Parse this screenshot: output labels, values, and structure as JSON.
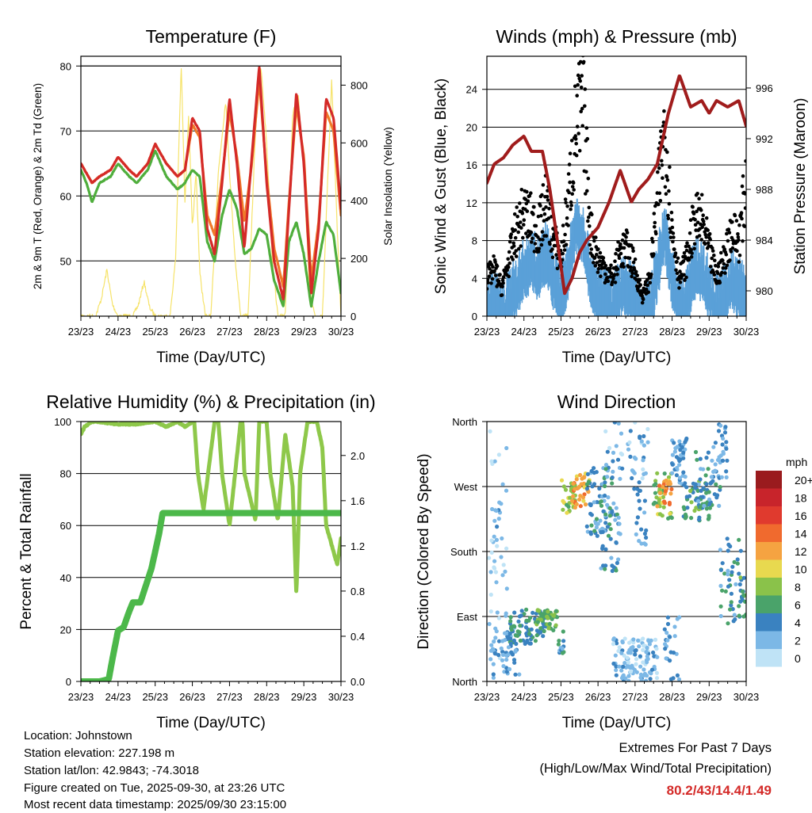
{
  "x_tick_labels": [
    "23/23",
    "24/23",
    "25/23",
    "26/23",
    "27/23",
    "28/23",
    "29/23",
    "30/23"
  ],
  "x_axis_label": "Time (Day/UTC)",
  "colors": {
    "red": "#d42a28",
    "orange": "#f07a2a",
    "green": "#4fae3c",
    "yellow": "#f6e36a",
    "blue": "#5aa0d8",
    "black": "#000000",
    "maroon": "#a01c1c",
    "rh": "#8ec84a",
    "precip": "#4cb84a"
  },
  "chart_data": [
    {
      "id": "temperature",
      "type": "line",
      "title": "Temperature (F)",
      "xlabel": "Time (Day/UTC)",
      "ylabel": "2m & 9m T (Red, Orange) & 2m Td (Green)",
      "ylabel2": "Solar Insolation (Yellow)",
      "ylim": [
        41.5,
        81.5
      ],
      "yticks": [
        50,
        60,
        70,
        80
      ],
      "ylim2": [
        0,
        900
      ],
      "yticks2": [
        0,
        200,
        400,
        600,
        800
      ],
      "xlim": [
        0,
        7
      ],
      "series": [
        {
          "name": "2m T",
          "color": "red",
          "x": [
            0,
            0.15,
            0.3,
            0.5,
            0.8,
            1.0,
            1.3,
            1.5,
            1.8,
            2.0,
            2.3,
            2.6,
            2.8,
            3.0,
            3.2,
            3.4,
            3.6,
            3.8,
            4.0,
            4.2,
            4.4,
            4.6,
            4.8,
            5.0,
            5.2,
            5.45,
            5.6,
            5.8,
            6.0,
            6.2,
            6.4,
            6.6,
            6.8,
            7.0
          ],
          "y": [
            65,
            63.5,
            62,
            63,
            64,
            66,
            64,
            63,
            65,
            68,
            65,
            63,
            64,
            72,
            70,
            55,
            51,
            62,
            75,
            65,
            52,
            66,
            80,
            62,
            50,
            44,
            58,
            76,
            65,
            45,
            55,
            75,
            72,
            58
          ]
        },
        {
          "name": "9m T",
          "color": "orange",
          "x": [
            0,
            0.15,
            0.3,
            0.5,
            0.8,
            1.0,
            1.3,
            1.5,
            1.8,
            2.0,
            2.3,
            2.6,
            2.8,
            3.0,
            3.2,
            3.4,
            3.6,
            3.8,
            4.0,
            4.2,
            4.4,
            4.6,
            4.8,
            5.0,
            5.2,
            5.45,
            5.6,
            5.8,
            6.0,
            6.2,
            6.4,
            6.6,
            6.8,
            7.0
          ],
          "y": [
            65,
            63.5,
            62,
            63,
            64,
            66,
            64,
            63,
            65,
            68,
            65,
            63,
            64,
            71,
            69,
            57,
            54,
            63,
            73,
            66,
            56,
            65,
            78,
            63,
            52,
            46,
            59,
            74,
            66,
            47,
            56,
            73,
            70,
            57
          ]
        },
        {
          "name": "2m Td",
          "color": "green",
          "x": [
            0,
            0.15,
            0.3,
            0.5,
            0.8,
            1.0,
            1.3,
            1.5,
            1.8,
            2.0,
            2.3,
            2.6,
            2.8,
            3.0,
            3.2,
            3.4,
            3.6,
            3.8,
            4.0,
            4.2,
            4.4,
            4.6,
            4.8,
            5.0,
            5.2,
            5.45,
            5.6,
            5.8,
            6.0,
            6.2,
            6.4,
            6.6,
            6.8,
            7.0
          ],
          "y": [
            64,
            62,
            59,
            62,
            63,
            65,
            63,
            62,
            64,
            67,
            63,
            61,
            62,
            64,
            63,
            53,
            50,
            57,
            61,
            58,
            51,
            52,
            55,
            54,
            47,
            43,
            53,
            56,
            51,
            43,
            50,
            56,
            54,
            45
          ]
        },
        {
          "name": "Solar Insolation",
          "color": "yellow",
          "axis": "right",
          "x": [
            0,
            0.4,
            0.55,
            0.7,
            0.85,
            1.0,
            1.4,
            1.55,
            1.7,
            1.85,
            2.0,
            2.4,
            2.55,
            2.7,
            2.8,
            2.9,
            3.0,
            3.1,
            3.2,
            3.35,
            3.5,
            3.7,
            3.9,
            4.0,
            4.15,
            4.3,
            4.5,
            4.7,
            4.85,
            5.0,
            5.15,
            5.3,
            5.5,
            5.7,
            5.85,
            6.0,
            6.15,
            6.3,
            6.5,
            6.75,
            6.9,
            7.0
          ],
          "y": [
            0,
            0,
            60,
            160,
            40,
            0,
            0,
            40,
            120,
            30,
            0,
            0,
            200,
            870,
            400,
            700,
            300,
            500,
            150,
            0,
            0,
            500,
            750,
            500,
            200,
            0,
            0,
            650,
            860,
            600,
            200,
            0,
            0,
            700,
            760,
            500,
            100,
            0,
            0,
            820,
            300,
            0
          ]
        }
      ]
    },
    {
      "id": "winds",
      "type": "scatter",
      "title": "Winds (mph) & Pressure (mb)",
      "xlabel": "Time (Day/UTC)",
      "ylabel": "Sonic Wind & Gust (Blue, Black)",
      "ylabel2": "Station Pressure (Maroon)",
      "ylim": [
        0,
        27.5
      ],
      "yticks": [
        0,
        4,
        8,
        12,
        16,
        20,
        24
      ],
      "ylim2": [
        978,
        998.5
      ],
      "yticks2": [
        980,
        984,
        988,
        992,
        996
      ],
      "xlim": [
        0,
        7
      ],
      "series": [
        {
          "name": "Sonic Wind",
          "color": "blue",
          "x": [
            0,
            0.2,
            0.4,
            0.6,
            0.8,
            1.0,
            1.2,
            1.4,
            1.6,
            1.8,
            2.0,
            2.2,
            2.4,
            2.6,
            2.8,
            3.0,
            3.2,
            3.4,
            3.6,
            3.8,
            4.0,
            4.2,
            4.4,
            4.6,
            4.8,
            5.0,
            5.2,
            5.4,
            5.6,
            5.8,
            6.0,
            6.2,
            6.4,
            6.6,
            6.8,
            7.0
          ],
          "y": [
            2,
            3,
            1,
            3,
            4,
            6,
            7,
            6,
            8,
            5,
            3,
            6,
            11,
            10,
            5,
            3,
            3,
            2,
            4,
            4,
            3,
            1,
            2,
            6,
            10,
            5,
            2,
            3,
            6,
            6,
            4,
            2,
            3,
            5,
            4,
            3
          ]
        },
        {
          "name": "Gust",
          "color": "black",
          "x": [
            0,
            0.2,
            0.4,
            0.6,
            0.8,
            1.0,
            1.2,
            1.4,
            1.6,
            1.8,
            2.0,
            2.2,
            2.4,
            2.6,
            2.8,
            3.0,
            3.2,
            3.4,
            3.6,
            3.8,
            4.0,
            4.2,
            4.4,
            4.6,
            4.8,
            5.0,
            5.2,
            5.4,
            5.6,
            5.8,
            6.0,
            6.2,
            6.4,
            6.6,
            6.8,
            7.0
          ],
          "y": [
            4,
            5,
            3,
            6,
            9,
            11,
            10,
            9,
            12,
            8,
            6,
            12,
            20,
            22,
            9,
            6,
            5,
            4,
            7,
            7,
            5,
            2,
            4,
            12,
            20,
            9,
            4,
            6,
            10,
            10,
            7,
            4,
            6,
            9,
            8,
            14
          ]
        },
        {
          "name": "Station Pressure",
          "color": "maroon",
          "axis": "right",
          "x": [
            0,
            0.2,
            0.45,
            0.7,
            1.0,
            1.2,
            1.5,
            1.7,
            1.9,
            2.1,
            2.3,
            2.5,
            2.7,
            3.0,
            3.3,
            3.6,
            3.9,
            4.1,
            4.35,
            4.6,
            4.9,
            5.2,
            5.5,
            5.8,
            6.0,
            6.2,
            6.5,
            6.8,
            7.0
          ],
          "y": [
            988.5,
            990,
            990.5,
            991.5,
            992.2,
            991,
            991,
            988,
            984,
            979.8,
            981,
            983,
            984,
            985,
            987,
            989.5,
            987,
            988,
            988.8,
            990,
            994,
            997,
            994.5,
            995,
            994,
            995,
            994.5,
            995,
            993
          ]
        }
      ]
    },
    {
      "id": "humidity",
      "type": "line",
      "title": "Relative Humidity (%) & Precipitation (in)",
      "xlabel": "Time (Day/UTC)",
      "ylabel": "Percent & Total Rainfall",
      "ylim": [
        0,
        100
      ],
      "yticks": [
        0,
        20,
        40,
        60,
        80,
        100
      ],
      "ylim2": [
        0,
        2.3
      ],
      "yticks2": [
        0.0,
        0.4,
        0.8,
        1.2,
        1.6,
        2.0
      ],
      "xlim": [
        0,
        7
      ],
      "series": [
        {
          "name": "Relative Humidity",
          "color": "rh",
          "x": [
            0,
            0.1,
            0.3,
            1.0,
            1.5,
            2.0,
            2.3,
            2.6,
            2.8,
            2.9,
            3.05,
            3.15,
            3.3,
            3.6,
            3.7,
            3.8,
            4.0,
            4.3,
            4.35,
            4.4,
            4.7,
            4.8,
            4.9,
            5.0,
            5.1,
            5.3,
            5.5,
            5.7,
            5.8,
            5.9,
            6.1,
            6.35,
            6.5,
            6.6,
            6.8,
            6.9,
            7.0
          ],
          "y": [
            95,
            98,
            100,
            99,
            99,
            100,
            98,
            100,
            98,
            99,
            100,
            80,
            66,
            100,
            100,
            80,
            60,
            100,
            100,
            80,
            62,
            100,
            100,
            100,
            80,
            62,
            95,
            75,
            33,
            80,
            100,
            100,
            90,
            60,
            50,
            45,
            55
          ]
        },
        {
          "name": "Total Precipitation",
          "color": "precip",
          "axis": "right",
          "x": [
            0,
            0.5,
            0.75,
            0.85,
            1.0,
            1.15,
            1.3,
            1.4,
            1.6,
            1.7,
            1.9,
            2.1,
            2.2,
            3.0,
            4.0,
            5.0,
            6.0,
            7.0
          ],
          "y": [
            0,
            0,
            0.02,
            0.2,
            0.45,
            0.48,
            0.62,
            0.7,
            0.7,
            0.8,
            1.0,
            1.3,
            1.49,
            1.49,
            1.49,
            1.49,
            1.49,
            1.49
          ]
        }
      ]
    },
    {
      "id": "wind_direction",
      "type": "scatter",
      "title": "Wind Direction",
      "xlabel": "Time (Day/UTC)",
      "ylabel": "Direction (Colored By Speed)",
      "ytick_labels": [
        "North",
        "East",
        "South",
        "West",
        "North"
      ],
      "ylim": [
        0,
        360
      ],
      "xlim": [
        0,
        7
      ],
      "color_scale_title": "mph",
      "color_scale_labels": [
        "20+",
        "18",
        "16",
        "14",
        "12",
        "10",
        "8",
        "6",
        "4",
        "2",
        "0"
      ],
      "color_scale_colors": [
        "#9a1b1e",
        "#c8242b",
        "#e03a2e",
        "#f06a2e",
        "#f5a341",
        "#e8d94f",
        "#8ac24a",
        "#4aa36a",
        "#3a82c0",
        "#7cb8e6",
        "#bfe3f6"
      ],
      "clusters": [
        {
          "x": [
            0.05,
            0.55
          ],
          "dir": [
            350,
            20
          ],
          "speed": 1,
          "n": 30
        },
        {
          "x": [
            0.1,
            0.6
          ],
          "dir": [
            150,
            250
          ],
          "speed": 2,
          "n": 18
        },
        {
          "x": [
            0.1,
            0.9
          ],
          "dir": [
            5,
            80
          ],
          "speed": 3,
          "n": 60
        },
        {
          "x": [
            0.6,
            1.6
          ],
          "dir": [
            50,
            100
          ],
          "speed": 5,
          "n": 80
        },
        {
          "x": [
            1.3,
            1.9
          ],
          "dir": [
            70,
            100
          ],
          "speed": 7,
          "n": 45
        },
        {
          "x": [
            1.9,
            2.1
          ],
          "dir": [
            30,
            70
          ],
          "speed": 4,
          "n": 12
        },
        {
          "x": [
            2.0,
            2.4
          ],
          "dir": [
            230,
            280
          ],
          "speed": 8,
          "n": 30
        },
        {
          "x": [
            2.3,
            2.8
          ],
          "dir": [
            240,
            290
          ],
          "speed": 12,
          "n": 35
        },
        {
          "x": [
            2.7,
            3.4
          ],
          "dir": [
            200,
            300
          ],
          "speed": 4,
          "n": 70
        },
        {
          "x": [
            3.0,
            3.6
          ],
          "dir": [
            150,
            250
          ],
          "speed": 4,
          "n": 40
        },
        {
          "x": [
            3.4,
            4.6
          ],
          "dir": [
            0,
            60
          ],
          "speed": 2,
          "n": 120
        },
        {
          "x": [
            3.2,
            4.4
          ],
          "dir": [
            280,
            360
          ],
          "speed": 2,
          "n": 40
        },
        {
          "x": [
            4.5,
            5.0
          ],
          "dir": [
            220,
            300
          ],
          "speed": 8,
          "n": 35
        },
        {
          "x": [
            4.6,
            5.0
          ],
          "dir": [
            240,
            280
          ],
          "speed": 13,
          "n": 20
        },
        {
          "x": [
            5.0,
            5.4
          ],
          "dir": [
            270,
            340
          ],
          "speed": 3,
          "n": 45
        },
        {
          "x": [
            5.3,
            6.0
          ],
          "dir": [
            220,
            280
          ],
          "speed": 6,
          "n": 50
        },
        {
          "x": [
            5.6,
            6.3
          ],
          "dir": [
            240,
            320
          ],
          "speed": 4,
          "n": 45
        },
        {
          "x": [
            6.1,
            6.5
          ],
          "dir": [
            280,
            360
          ],
          "speed": 3,
          "n": 30
        },
        {
          "x": [
            6.3,
            6.9
          ],
          "dir": [
            80,
            200
          ],
          "speed": 4,
          "n": 40
        },
        {
          "x": [
            6.8,
            7.0
          ],
          "dir": [
            80,
            150
          ],
          "speed": 6,
          "n": 18
        },
        {
          "x": [
            4.8,
            5.2
          ],
          "dir": [
            0,
            90
          ],
          "speed": 3,
          "n": 25
        },
        {
          "x": [
            3.9,
            4.3
          ],
          "dir": [
            180,
            300
          ],
          "speed": 3,
          "n": 25
        }
      ]
    }
  ],
  "station_info": {
    "location": "Location: Johnstown",
    "elevation": "Station elevation: 227.198 m",
    "latlon": "Station lat/lon: 42.9843; -74.3018",
    "created": "Figure created on Tue, 2025-09-30, at 23:26 UTC",
    "recent": "Most recent data timestamp: 2025/09/30 23:15:00"
  },
  "extremes": {
    "title": "Extremes For Past 7 Days",
    "subtitle": "(High/Low/Max Wind/Total Precipitation)",
    "values": "80.2/43/14.4/1.49"
  }
}
